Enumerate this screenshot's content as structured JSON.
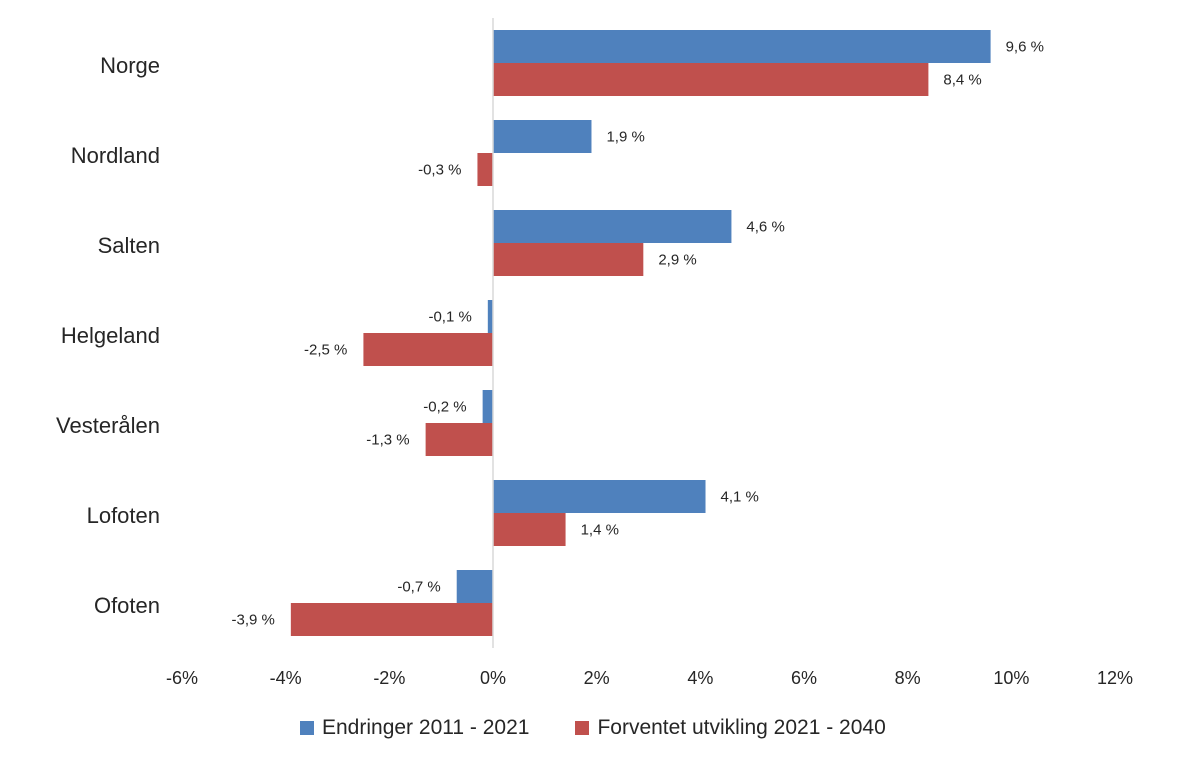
{
  "chart_data": {
    "type": "bar",
    "orientation": "horizontal",
    "categories": [
      "Norge",
      "Nordland",
      "Salten",
      "Helgeland",
      "Vesterålen",
      "Lofoten",
      "Ofoten"
    ],
    "series": [
      {
        "name": "Endringer 2011 - 2021",
        "color": "#4f81bd",
        "values": [
          9.6,
          1.9,
          4.6,
          -0.1,
          -0.2,
          4.1,
          -0.7
        ],
        "labels": [
          "9,6 %",
          "1,9 %",
          "4,6 %",
          "-0,1 %",
          "-0,2 %",
          "4,1 %",
          "-0,7 %"
        ]
      },
      {
        "name": "Forventet utvikling 2021 - 2040",
        "color": "#c0504d",
        "values": [
          8.4,
          -0.3,
          2.9,
          -2.5,
          -1.3,
          1.4,
          -3.9
        ],
        "labels": [
          "8,4 %",
          "-0,3 %",
          "2,9 %",
          "-2,5 %",
          "-1,3 %",
          "1,4 %",
          "-3,9 %"
        ]
      }
    ],
    "xlim": [
      -6,
      12
    ],
    "xticks": [
      -6,
      -4,
      -2,
      0,
      2,
      4,
      6,
      8,
      10,
      12
    ],
    "xtick_labels": [
      "-6%",
      "-4%",
      "-2%",
      "0%",
      "2%",
      "4%",
      "6%",
      "8%",
      "10%",
      "12%"
    ],
    "grid": false,
    "legend_position": "bottom"
  }
}
